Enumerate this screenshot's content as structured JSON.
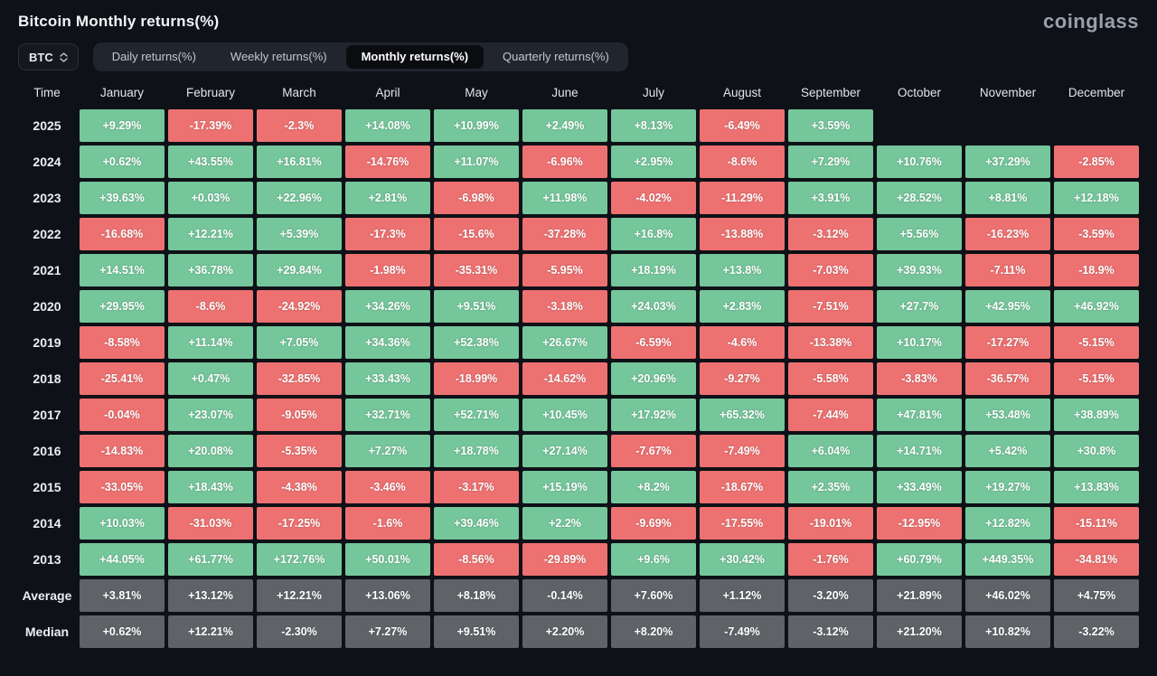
{
  "page": {
    "title": "Bitcoin Monthly returns(%)",
    "logo": "coinglass"
  },
  "controls": {
    "symbol_select": {
      "value": "BTC",
      "icon": "updown-icon"
    },
    "tabs": [
      {
        "label": "Daily returns(%)",
        "active": false
      },
      {
        "label": "Weekly returns(%)",
        "active": false
      },
      {
        "label": "Monthly returns(%)",
        "active": true
      },
      {
        "label": "Quarterly returns(%)",
        "active": false
      }
    ]
  },
  "colors": {
    "positive": "#75c69b",
    "negative": "#ed7171",
    "summary": "#5f6367",
    "background": "#0e1117"
  },
  "chart_data": {
    "type": "heatmap",
    "title": "Bitcoin Monthly returns(%)",
    "legend_position": "none",
    "grid": false,
    "columns": [
      "Time",
      "January",
      "February",
      "March",
      "April",
      "May",
      "June",
      "July",
      "August",
      "September",
      "October",
      "November",
      "December"
    ],
    "rows": [
      {
        "label": "2025",
        "summary": false,
        "values": [
          "+9.29%",
          "-17.39%",
          "-2.3%",
          "+14.08%",
          "+10.99%",
          "+2.49%",
          "+8.13%",
          "-6.49%",
          "+3.59%",
          null,
          null,
          null
        ]
      },
      {
        "label": "2024",
        "summary": false,
        "values": [
          "+0.62%",
          "+43.55%",
          "+16.81%",
          "-14.76%",
          "+11.07%",
          "-6.96%",
          "+2.95%",
          "-8.6%",
          "+7.29%",
          "+10.76%",
          "+37.29%",
          "-2.85%"
        ]
      },
      {
        "label": "2023",
        "summary": false,
        "values": [
          "+39.63%",
          "+0.03%",
          "+22.96%",
          "+2.81%",
          "-6.98%",
          "+11.98%",
          "-4.02%",
          "-11.29%",
          "+3.91%",
          "+28.52%",
          "+8.81%",
          "+12.18%"
        ]
      },
      {
        "label": "2022",
        "summary": false,
        "values": [
          "-16.68%",
          "+12.21%",
          "+5.39%",
          "-17.3%",
          "-15.6%",
          "-37.28%",
          "+16.8%",
          "-13.88%",
          "-3.12%",
          "+5.56%",
          "-16.23%",
          "-3.59%"
        ]
      },
      {
        "label": "2021",
        "summary": false,
        "values": [
          "+14.51%",
          "+36.78%",
          "+29.84%",
          "-1.98%",
          "-35.31%",
          "-5.95%",
          "+18.19%",
          "+13.8%",
          "-7.03%",
          "+39.93%",
          "-7.11%",
          "-18.9%"
        ]
      },
      {
        "label": "2020",
        "summary": false,
        "values": [
          "+29.95%",
          "-8.6%",
          "-24.92%",
          "+34.26%",
          "+9.51%",
          "-3.18%",
          "+24.03%",
          "+2.83%",
          "-7.51%",
          "+27.7%",
          "+42.95%",
          "+46.92%"
        ]
      },
      {
        "label": "2019",
        "summary": false,
        "values": [
          "-8.58%",
          "+11.14%",
          "+7.05%",
          "+34.36%",
          "+52.38%",
          "+26.67%",
          "-6.59%",
          "-4.6%",
          "-13.38%",
          "+10.17%",
          "-17.27%",
          "-5.15%"
        ]
      },
      {
        "label": "2018",
        "summary": false,
        "values": [
          "-25.41%",
          "+0.47%",
          "-32.85%",
          "+33.43%",
          "-18.99%",
          "-14.62%",
          "+20.96%",
          "-9.27%",
          "-5.58%",
          "-3.83%",
          "-36.57%",
          "-5.15%"
        ]
      },
      {
        "label": "2017",
        "summary": false,
        "values": [
          "-0.04%",
          "+23.07%",
          "-9.05%",
          "+32.71%",
          "+52.71%",
          "+10.45%",
          "+17.92%",
          "+65.32%",
          "-7.44%",
          "+47.81%",
          "+53.48%",
          "+38.89%"
        ]
      },
      {
        "label": "2016",
        "summary": false,
        "values": [
          "-14.83%",
          "+20.08%",
          "-5.35%",
          "+7.27%",
          "+18.78%",
          "+27.14%",
          "-7.67%",
          "-7.49%",
          "+6.04%",
          "+14.71%",
          "+5.42%",
          "+30.8%"
        ]
      },
      {
        "label": "2015",
        "summary": false,
        "values": [
          "-33.05%",
          "+18.43%",
          "-4.38%",
          "-3.46%",
          "-3.17%",
          "+15.19%",
          "+8.2%",
          "-18.67%",
          "+2.35%",
          "+33.49%",
          "+19.27%",
          "+13.83%"
        ]
      },
      {
        "label": "2014",
        "summary": false,
        "values": [
          "+10.03%",
          "-31.03%",
          "-17.25%",
          "-1.6%",
          "+39.46%",
          "+2.2%",
          "-9.69%",
          "-17.55%",
          "-19.01%",
          "-12.95%",
          "+12.82%",
          "-15.11%"
        ]
      },
      {
        "label": "2013",
        "summary": false,
        "values": [
          "+44.05%",
          "+61.77%",
          "+172.76%",
          "+50.01%",
          "-8.56%",
          "-29.89%",
          "+9.6%",
          "+30.42%",
          "-1.76%",
          "+60.79%",
          "+449.35%",
          "-34.81%"
        ]
      },
      {
        "label": "Average",
        "summary": true,
        "values": [
          "+3.81%",
          "+13.12%",
          "+12.21%",
          "+13.06%",
          "+8.18%",
          "-0.14%",
          "+7.60%",
          "+1.12%",
          "-3.20%",
          "+21.89%",
          "+46.02%",
          "+4.75%"
        ]
      },
      {
        "label": "Median",
        "summary": true,
        "values": [
          "+0.62%",
          "+12.21%",
          "-2.30%",
          "+7.27%",
          "+9.51%",
          "+2.20%",
          "+8.20%",
          "-7.49%",
          "-3.12%",
          "+21.20%",
          "+10.82%",
          "-3.22%"
        ]
      }
    ]
  }
}
